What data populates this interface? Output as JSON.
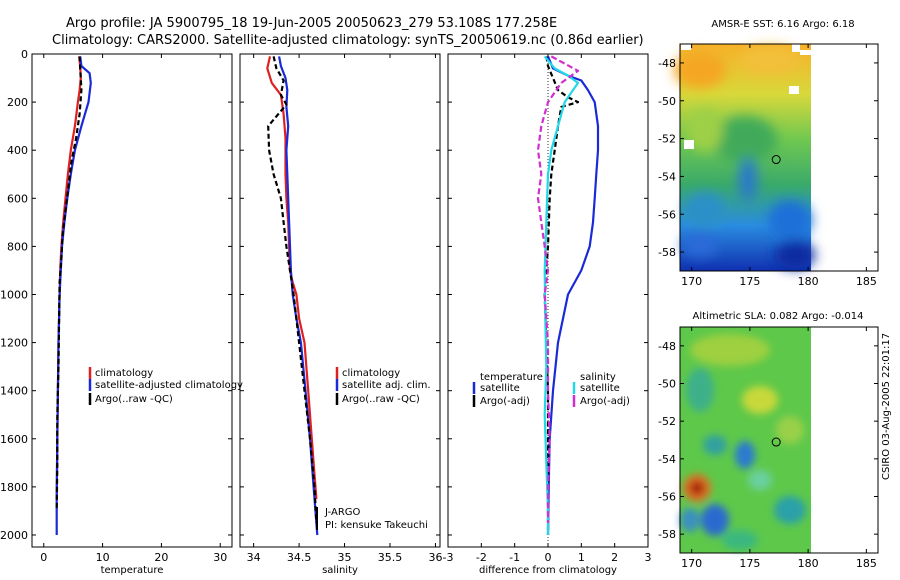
{
  "header": {
    "line1": "Argo profile: JA 5900795_18 19-Jun-2005 20050623_279 53.108S 177.258E",
    "line2": "Climatology: CARS2000. Satellite-adjusted climatology: synTS_20050619.nc (0.86d earlier)"
  },
  "side_note": "CSIRO 03-Aug-2005 22:01:17",
  "colors": {
    "red": "#e02020",
    "blue": "#1a2ad8",
    "black": "#000000",
    "cyan": "#22d8e8",
    "magenta": "#d030d0"
  },
  "chart_data": [
    {
      "id": "temperature",
      "type": "line",
      "xlabel": "temperature",
      "xlim": [
        -2,
        32
      ],
      "ylim": [
        2050,
        0
      ],
      "xticks": [
        0,
        10,
        20,
        30
      ],
      "yticks": [
        0,
        200,
        400,
        600,
        800,
        1000,
        1200,
        1400,
        1600,
        1800,
        2000
      ],
      "legend": [
        "climatology",
        "satellite-adjusted climatology",
        "Argo(..raw -QC)"
      ],
      "series": [
        {
          "name": "climatology",
          "color": "red",
          "dash": "",
          "points": [
            [
              6.0,
              10
            ],
            [
              6.2,
              50
            ],
            [
              6.3,
              100
            ],
            [
              6.1,
              150
            ],
            [
              5.8,
              200
            ],
            [
              5.3,
              300
            ],
            [
              4.6,
              400
            ],
            [
              4.1,
              500
            ],
            [
              3.7,
              600
            ],
            [
              3.3,
              700
            ],
            [
              3.0,
              800
            ],
            [
              2.8,
              900
            ],
            [
              2.7,
              1000
            ],
            [
              2.5,
              1200
            ],
            [
              2.4,
              1400
            ],
            [
              2.3,
              1600
            ],
            [
              2.2,
              1850
            ]
          ]
        },
        {
          "name": "satellite-adjusted climatology",
          "color": "blue",
          "dash": "",
          "points": [
            [
              6.2,
              10
            ],
            [
              6.4,
              50
            ],
            [
              7.8,
              80
            ],
            [
              8.0,
              120
            ],
            [
              7.6,
              200
            ],
            [
              6.4,
              300
            ],
            [
              5.3,
              400
            ],
            [
              4.6,
              500
            ],
            [
              4.0,
              600
            ],
            [
              3.5,
              700
            ],
            [
              3.1,
              800
            ],
            [
              2.9,
              900
            ],
            [
              2.7,
              1000
            ],
            [
              2.5,
              1200
            ],
            [
              2.4,
              1400
            ],
            [
              2.3,
              1600
            ],
            [
              2.2,
              1850
            ],
            [
              2.2,
              2000
            ]
          ]
        },
        {
          "name": "Argo(..raw -QC)",
          "color": "black",
          "dash": "5,3",
          "points": [
            [
              6.1,
              10
            ],
            [
              6.2,
              60
            ],
            [
              6.4,
              150
            ],
            [
              6.1,
              250
            ],
            [
              5.5,
              350
            ],
            [
              4.7,
              450
            ],
            [
              4.2,
              550
            ],
            [
              3.7,
              650
            ],
            [
              3.2,
              750
            ],
            [
              3.0,
              850
            ],
            [
              2.7,
              950
            ],
            [
              2.6,
              1100
            ],
            [
              2.5,
              1300
            ],
            [
              2.3,
              1500
            ],
            [
              2.3,
              1700
            ],
            [
              2.2,
              1900
            ]
          ]
        }
      ]
    },
    {
      "id": "salinity",
      "type": "line",
      "xlabel": "salinity",
      "xlim": [
        33.85,
        36.05
      ],
      "ylim": [
        2050,
        0
      ],
      "xticks": [
        34,
        34.5,
        35,
        35.5,
        36
      ],
      "xtick_labels": [
        "34",
        "34.5",
        "35",
        "35.5",
        "36"
      ],
      "yticks": [
        0,
        200,
        400,
        600,
        800,
        1000,
        1200,
        1400,
        1600,
        1800,
        2000
      ],
      "legend": [
        "climatology",
        "satellite adj. clim.",
        "Argo(..raw -QC)"
      ],
      "annotation": [
        "J-ARGO",
        "PI: kensuke Takeuchi"
      ],
      "series": [
        {
          "name": "climatology",
          "color": "red",
          "dash": "",
          "points": [
            [
              34.18,
              10
            ],
            [
              34.15,
              60
            ],
            [
              34.2,
              120
            ],
            [
              34.3,
              170
            ],
            [
              34.33,
              250
            ],
            [
              34.35,
              350
            ],
            [
              34.35,
              500
            ],
            [
              34.36,
              600
            ],
            [
              34.38,
              700
            ],
            [
              34.39,
              800
            ],
            [
              34.4,
              900
            ],
            [
              34.43,
              950
            ],
            [
              34.47,
              1000
            ],
            [
              34.5,
              1100
            ],
            [
              34.56,
              1200
            ],
            [
              34.6,
              1400
            ],
            [
              34.64,
              1600
            ],
            [
              34.67,
              1750
            ],
            [
              34.69,
              1850
            ]
          ]
        },
        {
          "name": "satellite adj. clim.",
          "color": "blue",
          "dash": "",
          "points": [
            [
              34.28,
              10
            ],
            [
              34.3,
              50
            ],
            [
              34.35,
              100
            ],
            [
              34.37,
              150
            ],
            [
              34.36,
              220
            ],
            [
              34.38,
              300
            ],
            [
              34.36,
              400
            ],
            [
              34.37,
              500
            ],
            [
              34.38,
              600
            ],
            [
              34.39,
              700
            ],
            [
              34.4,
              800
            ],
            [
              34.41,
              900
            ],
            [
              34.43,
              1000
            ],
            [
              34.47,
              1100
            ],
            [
              34.52,
              1200
            ],
            [
              34.57,
              1400
            ],
            [
              34.62,
              1600
            ],
            [
              34.66,
              1800
            ],
            [
              34.7,
              2000
            ]
          ]
        },
        {
          "name": "Argo(..raw -QC)",
          "color": "black",
          "dash": "5,3",
          "points": [
            [
              34.22,
              10
            ],
            [
              34.25,
              60
            ],
            [
              34.33,
              110
            ],
            [
              34.3,
              170
            ],
            [
              34.36,
              210
            ],
            [
              34.16,
              300
            ],
            [
              34.17,
              400
            ],
            [
              34.22,
              500
            ],
            [
              34.3,
              600
            ],
            [
              34.33,
              700
            ],
            [
              34.36,
              800
            ],
            [
              34.4,
              900
            ],
            [
              34.44,
              1000
            ],
            [
              34.5,
              1200
            ],
            [
              34.56,
              1400
            ],
            [
              34.62,
              1600
            ],
            [
              34.67,
              1800
            ],
            [
              34.69,
              1950
            ]
          ]
        }
      ]
    },
    {
      "id": "difference",
      "type": "line",
      "xlabel": "difference from climatology",
      "xlim": [
        -3,
        3
      ],
      "ylim": [
        2050,
        0
      ],
      "xticks": [
        -3,
        -2,
        -1,
        0,
        1,
        2,
        3
      ],
      "yticks": [
        0,
        200,
        400,
        600,
        800,
        1000,
        1200,
        1400,
        1600,
        1800,
        2000
      ],
      "legend_left_title": "temperature",
      "legend_right_title": "salinity",
      "legend": [
        "satellite",
        "Argo(-adj)",
        "satellite",
        "Argo(-adj)"
      ],
      "series": [
        {
          "name": "temperature satellite",
          "color": "blue",
          "dash": "",
          "points": [
            [
              0.0,
              10
            ],
            [
              0.15,
              60
            ],
            [
              0.6,
              90
            ],
            [
              1.0,
              110
            ],
            [
              1.2,
              150
            ],
            [
              1.4,
              200
            ],
            [
              1.5,
              300
            ],
            [
              1.5,
              400
            ],
            [
              1.45,
              500
            ],
            [
              1.4,
              600
            ],
            [
              1.35,
              700
            ],
            [
              1.25,
              800
            ],
            [
              1.0,
              900
            ],
            [
              0.6,
              1000
            ],
            [
              0.3,
              1200
            ],
            [
              0.15,
              1400
            ],
            [
              0.05,
              1600
            ],
            [
              0.02,
              1800
            ],
            [
              0.0,
              2000
            ]
          ]
        },
        {
          "name": "temperature Argo(-adj)",
          "color": "black",
          "dash": "5,3",
          "points": [
            [
              -0.05,
              10
            ],
            [
              0.0,
              50
            ],
            [
              0.15,
              100
            ],
            [
              0.3,
              150
            ],
            [
              0.6,
              180
            ],
            [
              0.9,
              200
            ],
            [
              0.4,
              220
            ],
            [
              0.3,
              300
            ],
            [
              0.2,
              400
            ],
            [
              0.1,
              500
            ],
            [
              0.05,
              600
            ],
            [
              0.0,
              800
            ],
            [
              -0.05,
              900
            ],
            [
              -0.1,
              1000
            ],
            [
              -0.05,
              1200
            ],
            [
              0.0,
              1400
            ],
            [
              0.0,
              1600
            ],
            [
              0.0,
              1800
            ],
            [
              0.0,
              2000
            ]
          ]
        },
        {
          "name": "salinity satellite",
          "color": "cyan",
          "dash": "",
          "points": [
            [
              -0.1,
              10
            ],
            [
              0.2,
              60
            ],
            [
              0.6,
              90
            ],
            [
              0.9,
              120
            ],
            [
              0.5,
              200
            ],
            [
              0.3,
              300
            ],
            [
              0.1,
              400
            ],
            [
              0.0,
              500
            ],
            [
              -0.05,
              700
            ],
            [
              -0.1,
              900
            ],
            [
              -0.08,
              1100
            ],
            [
              -0.05,
              1300
            ],
            [
              -0.1,
              1500
            ],
            [
              -0.05,
              1700
            ],
            [
              0.0,
              1900
            ],
            [
              0.0,
              2000
            ]
          ]
        },
        {
          "name": "salinity Argo(-adj)",
          "color": "magenta",
          "dash": "6,3",
          "points": [
            [
              0.1,
              10
            ],
            [
              0.5,
              40
            ],
            [
              0.9,
              70
            ],
            [
              0.4,
              120
            ],
            [
              0.0,
              200
            ],
            [
              -0.2,
              300
            ],
            [
              -0.3,
              400
            ],
            [
              -0.2,
              500
            ],
            [
              -0.3,
              600
            ],
            [
              -0.2,
              700
            ],
            [
              -0.1,
              800
            ],
            [
              0.0,
              900
            ],
            [
              -0.1,
              1000
            ],
            [
              0.0,
              1200
            ],
            [
              0.0,
              1400
            ],
            [
              0.05,
              1600
            ],
            [
              0.0,
              1800
            ],
            [
              0.0,
              1950
            ]
          ]
        }
      ]
    },
    {
      "id": "sst_map",
      "type": "heatmap",
      "title": "AMSR-E SST: 6.16 Argo: 6.18",
      "xlim": [
        169,
        186
      ],
      "ylim": [
        -59,
        -47
      ],
      "xticks": [
        170,
        175,
        180,
        185
      ],
      "yticks": [
        -48,
        -50,
        -52,
        -54,
        -56,
        -58
      ],
      "data_xlim": [
        169,
        180
      ],
      "argo_marker": [
        177.258,
        -53.108
      ]
    },
    {
      "id": "sla_map",
      "type": "heatmap",
      "title": "Altimetric SLA: 0.082 Argo: -0.014",
      "xlim": [
        169,
        186
      ],
      "ylim": [
        -59,
        -47
      ],
      "xticks": [
        170,
        175,
        180,
        185
      ],
      "yticks": [
        -48,
        -50,
        -52,
        -54,
        -56,
        -58
      ],
      "data_xlim": [
        169,
        180
      ],
      "argo_marker": [
        177.258,
        -53.108
      ]
    }
  ]
}
